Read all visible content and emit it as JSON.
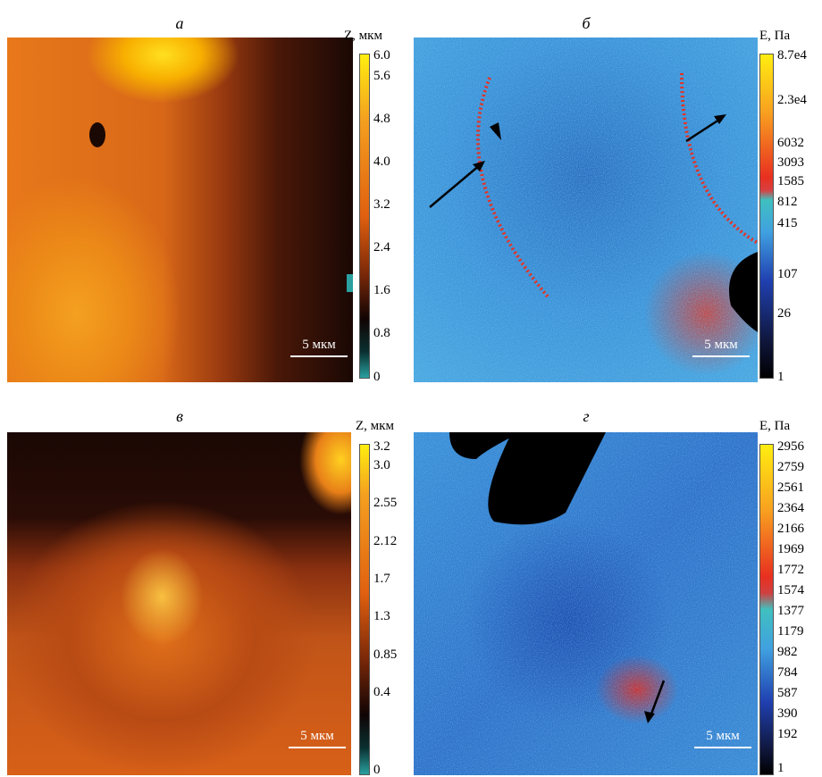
{
  "panels": [
    {
      "label": "а",
      "colorbar_title": "Z, мкм",
      "colorbar_ticks": [
        "6.0",
        "5.6",
        "4.8",
        "4.0",
        "3.2",
        "2.4",
        "1.6",
        "0.8",
        "0"
      ],
      "scale_bar": "5 мкм"
    },
    {
      "label": "б",
      "colorbar_title": "E, Па",
      "colorbar_ticks": [
        "8.7e4",
        "2.3e4",
        "6032",
        "3093",
        "1585",
        "812",
        "415",
        "107",
        "26",
        "1"
      ],
      "scale_bar": "5 мкм"
    },
    {
      "label": "в",
      "colorbar_title": "Z, мкм",
      "colorbar_ticks": [
        "3.2",
        "3.0",
        "2.55",
        "2.12",
        "1.7",
        "1.3",
        "0.85",
        "0.4",
        "0"
      ],
      "scale_bar": "5 мкм"
    },
    {
      "label": "г",
      "colorbar_title": "E, Па",
      "colorbar_ticks": [
        "2956",
        "2759",
        "2561",
        "2364",
        "2166",
        "1969",
        "1772",
        "1574",
        "1377",
        "1179",
        "982",
        "784",
        "587",
        "390",
        "192",
        "1"
      ],
      "scale_bar": "5 мкм"
    }
  ]
}
